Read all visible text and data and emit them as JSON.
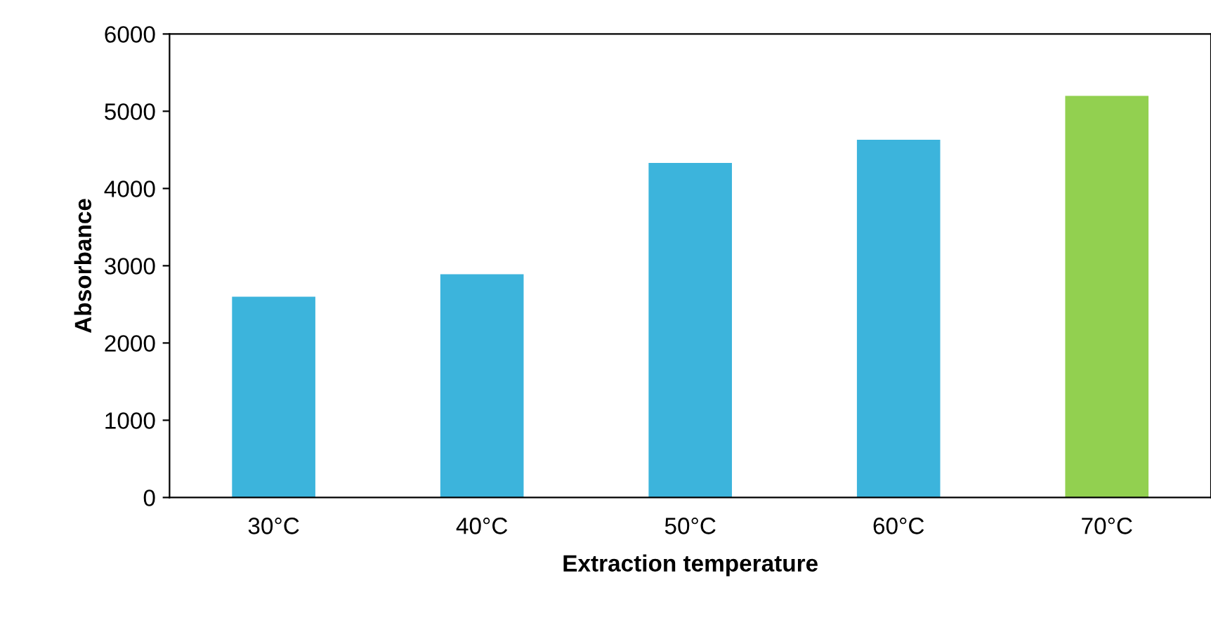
{
  "chart_data": {
    "type": "bar",
    "xlabel": "Extraction temperature",
    "ylabel": "Absorbance",
    "categories": [
      "30°C",
      "40°C",
      "50°C",
      "60°C",
      "70°C"
    ],
    "values": [
      2600,
      2890,
      4330,
      4630,
      5200
    ],
    "colors": [
      "#3cb4dc",
      "#3cb4dc",
      "#3cb4dc",
      "#3cb4dc",
      "#92d050"
    ],
    "ylim": [
      0,
      6000
    ],
    "yticks": [
      0,
      1000,
      2000,
      3000,
      4000,
      5000,
      6000
    ],
    "grid": false,
    "legend": false
  }
}
